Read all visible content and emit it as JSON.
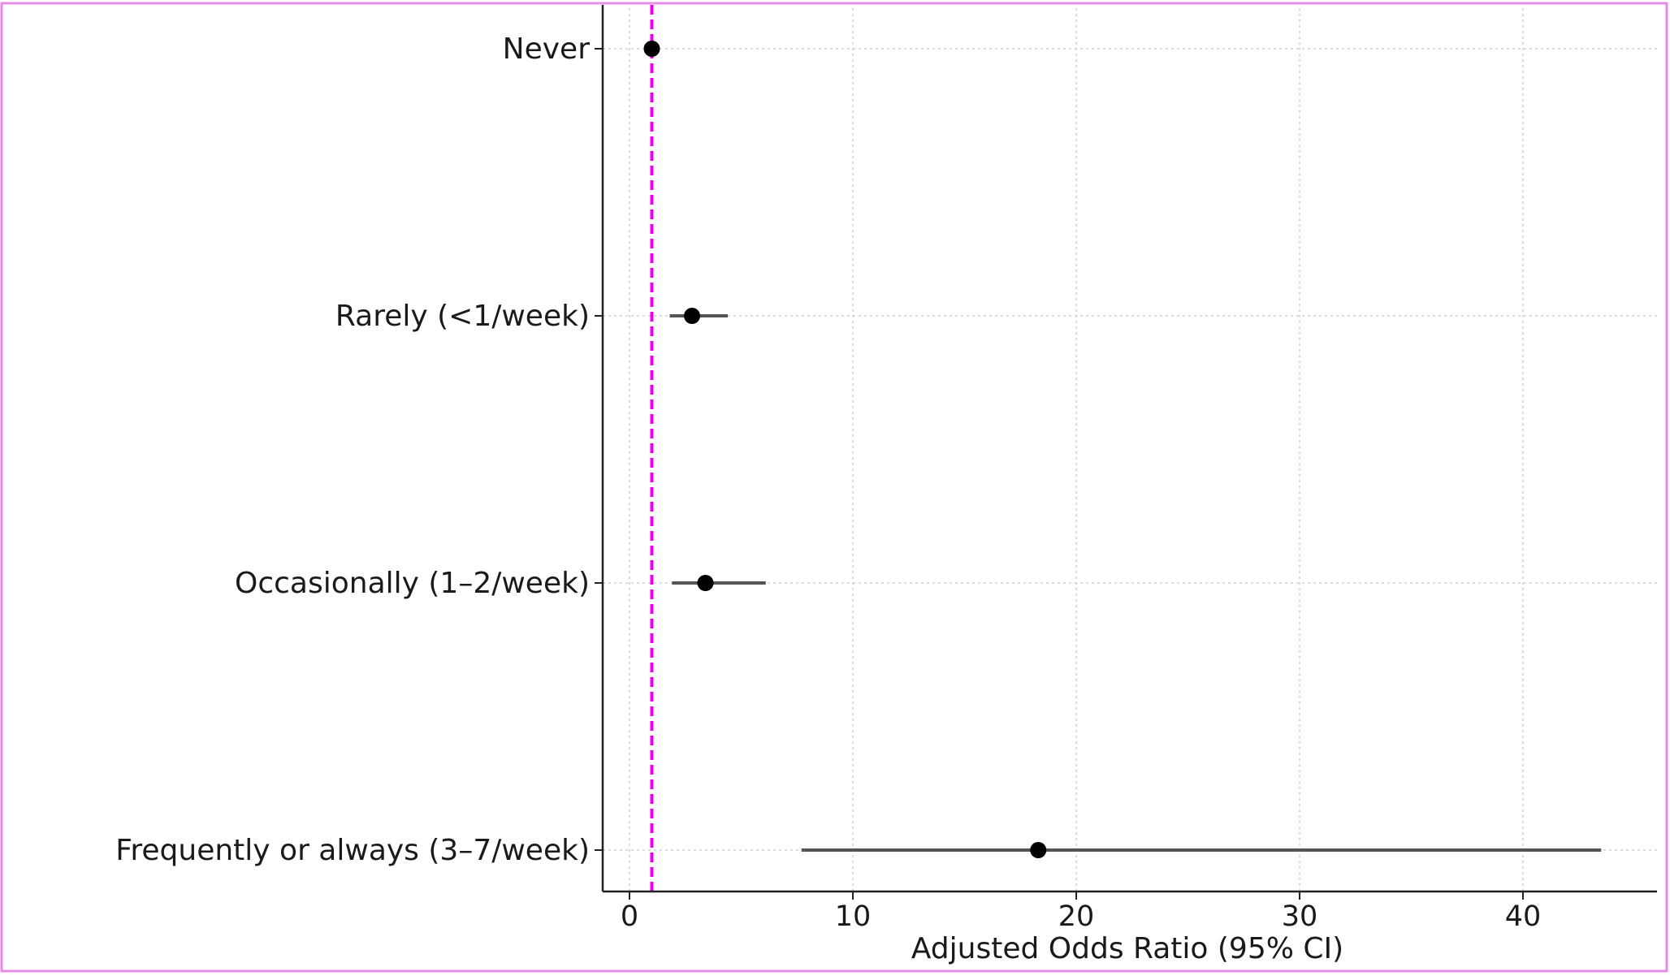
{
  "chart_data": {
    "type": "scatter",
    "chart_subtype": "forest-plot",
    "title": "",
    "xlabel": "Adjusted Odds Ratio (95% CI)",
    "ylabel": "",
    "xlim": [
      -1.2,
      46
    ],
    "xticks": [
      0,
      10,
      20,
      30,
      40
    ],
    "categories": [
      "Never",
      "Rarely (<1/week)",
      "Occasionally (1–2/week)",
      "Frequently or always (3–7/week)"
    ],
    "estimates": [
      1.0,
      2.8,
      3.4,
      18.3
    ],
    "ci_lower": [
      1.0,
      1.8,
      1.9,
      7.7
    ],
    "ci_upper": [
      1.0,
      4.4,
      6.1,
      43.5
    ],
    "reference_line": {
      "x": 1,
      "style": "dashed",
      "color": "#ee00ee"
    },
    "grid": true,
    "colors": {
      "point": "#000000",
      "ci": "#555555",
      "frame": "#e58ee5",
      "grid": "#d0d0d0"
    }
  }
}
